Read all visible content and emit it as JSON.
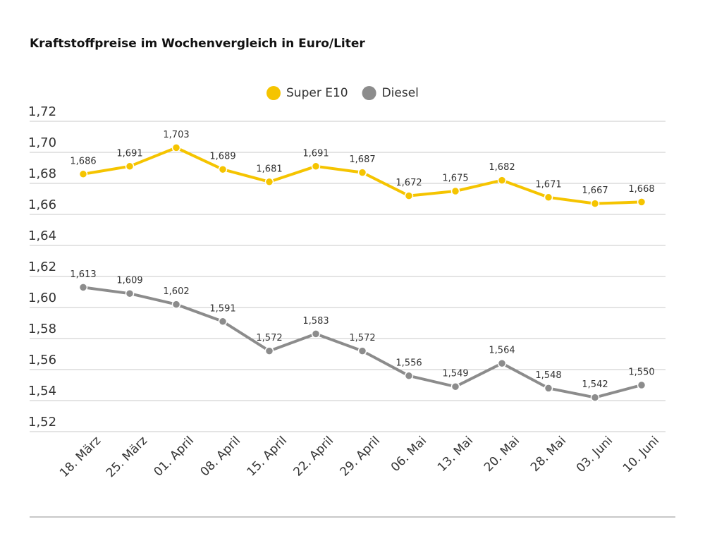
{
  "chart_data": {
    "type": "line",
    "title": "Kraftstoffpreise im Wochenvergleich in Euro/Liter",
    "categories": [
      "18. März",
      "25. März",
      "01. April",
      "08. April",
      "15. April",
      "22. April",
      "29. April",
      "06. Mai",
      "13. Mai",
      "20. Mai",
      "28. Mai",
      "03. Juni",
      "10. Juni"
    ],
    "series": [
      {
        "name": "Super E10",
        "color": "#f5c400",
        "values": [
          1.686,
          1.691,
          1.703,
          1.689,
          1.681,
          1.691,
          1.687,
          1.672,
          1.675,
          1.682,
          1.671,
          1.667,
          1.668
        ],
        "value_labels": [
          "1,686",
          "1,691",
          "1,703",
          "1,689",
          "1,681",
          "1,691",
          "1,687",
          "1,672",
          "1,675",
          "1,682",
          "1,671",
          "1,667",
          "1,668"
        ]
      },
      {
        "name": "Diesel",
        "color": "#8c8c8c",
        "values": [
          1.613,
          1.609,
          1.602,
          1.591,
          1.572,
          1.583,
          1.572,
          1.556,
          1.549,
          1.564,
          1.548,
          1.542,
          1.55
        ],
        "value_labels": [
          "1,613",
          "1,609",
          "1,602",
          "1,591",
          "1,572",
          "1,583",
          "1,572",
          "1,556",
          "1,549",
          "1,564",
          "1,548",
          "1,542",
          "1,550"
        ]
      }
    ],
    "ylim": [
      1.52,
      1.72
    ],
    "yticks": [
      {
        "value": 1.72,
        "label": "1,72"
      },
      {
        "value": 1.7,
        "label": "1,70"
      },
      {
        "value": 1.68,
        "label": "1,68"
      },
      {
        "value": 1.66,
        "label": "1,66"
      },
      {
        "value": 1.64,
        "label": "1,64"
      },
      {
        "value": 1.62,
        "label": "1,62"
      },
      {
        "value": 1.6,
        "label": "1,60"
      },
      {
        "value": 1.58,
        "label": "1,58"
      },
      {
        "value": 1.56,
        "label": "1,56"
      },
      {
        "value": 1.54,
        "label": "1,54"
      },
      {
        "value": 1.52,
        "label": "1,52"
      }
    ],
    "grid": true,
    "legend": "top"
  }
}
